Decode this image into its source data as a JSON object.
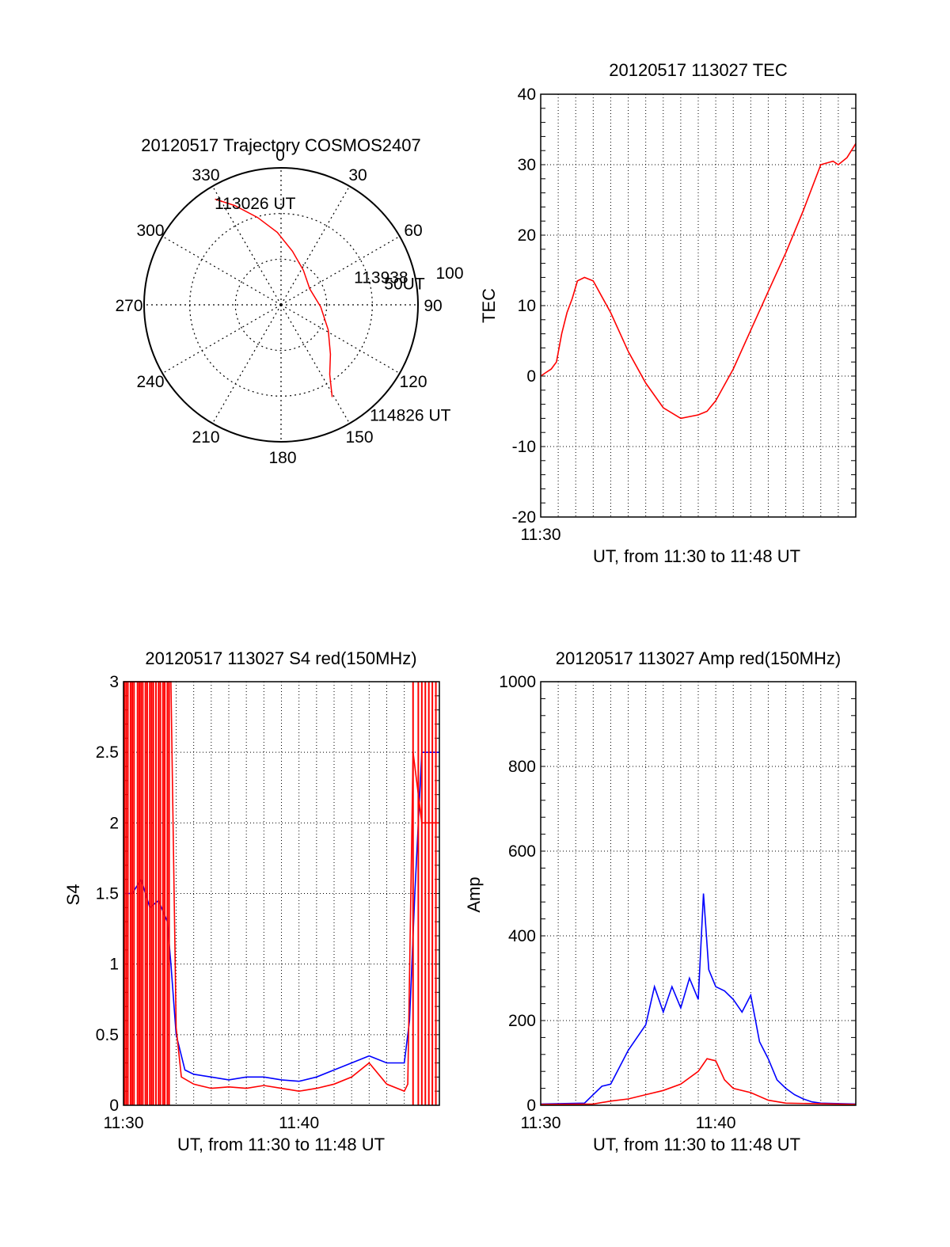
{
  "colors": {
    "red": "#ff0000",
    "blue": "#0000ff",
    "axis": "#000000",
    "grid": "#000000"
  },
  "chart_data": [
    {
      "type": "polar-trajectory",
      "title": "20120517 Trajectory COSMOS2407",
      "azimuth_labels": [
        "0",
        "30",
        "60",
        "90",
        "120",
        "150",
        "180",
        "210",
        "240",
        "270",
        "300",
        "330"
      ],
      "radius_label": "100",
      "rings": 3,
      "grid": true,
      "series": [
        {
          "color": "red",
          "points": [
            [
              328,
              91
            ],
            [
              335,
              80
            ],
            [
              345,
              66
            ],
            [
              357,
              53
            ],
            [
              12,
              40
            ],
            [
              33,
              30
            ],
            [
              61,
              24
            ],
            [
              93,
              29
            ],
            [
              118,
              39
            ],
            [
              135,
              51
            ],
            [
              145,
              62
            ],
            [
              151,
              77
            ]
          ]
        }
      ],
      "annotations": [
        {
          "text": "113026 UT",
          "az": 327,
          "r": 89
        },
        {
          "text": "113938",
          "az": 69,
          "r": 57
        },
        {
          "text": "50UT",
          "az": 78,
          "r": 77
        },
        {
          "text": "114826 UT",
          "az": 141,
          "r": 103
        }
      ]
    },
    {
      "type": "line",
      "title": "20120517 113027 TEC",
      "ylabel": "TEC",
      "xlabel": "UT, from 11:30 to 11:48 UT",
      "xlim": [
        0,
        18
      ],
      "ylim": [
        -20,
        40
      ],
      "yticks": [
        "-20",
        "-10",
        "0",
        "10",
        "20",
        "30",
        "40"
      ],
      "xtick_labels": [
        {
          "x": 0,
          "label": "11:30"
        }
      ],
      "grid": true,
      "series": [
        {
          "color": "red",
          "x": [
            0,
            0.3,
            0.6,
            0.9,
            1.2,
            1.5,
            1.8,
            2.1,
            2.5,
            3,
            4,
            5,
            6,
            7,
            8,
            9,
            9.5,
            10,
            11,
            12,
            13,
            14,
            15,
            16,
            16.7,
            17,
            17.5,
            18
          ],
          "y": [
            0,
            0.5,
            1,
            2,
            6,
            9,
            11,
            13.5,
            14,
            13.5,
            9,
            3.5,
            -1,
            -4.5,
            -6,
            -5.5,
            -5,
            -3.5,
            1,
            6.5,
            12,
            17.5,
            23.5,
            30,
            30.5,
            30,
            31,
            33
          ]
        }
      ]
    },
    {
      "type": "line",
      "title": "20120517 113027 S4 red(150MHz)",
      "ylabel": "S4",
      "xlabel": "UT, from 11:30 to 11:48 UT",
      "xlim": [
        0,
        18
      ],
      "ylim": [
        0,
        3
      ],
      "yticks": [
        "0",
        "0.5",
        "1",
        "1.5",
        "2",
        "2.5",
        "3"
      ],
      "xtick_labels": [
        {
          "x": 0,
          "label": "11:30"
        },
        {
          "x": 10,
          "label": "11:40"
        }
      ],
      "grid": true,
      "series": [
        {
          "color": "blue",
          "x": [
            0,
            0.5,
            1,
            1.5,
            2,
            2.5,
            2.7,
            3,
            3.5,
            4,
            5,
            6,
            7,
            8,
            9,
            10,
            11,
            12,
            13,
            14,
            15,
            16,
            16.3,
            16.6,
            17,
            17.5,
            18
          ],
          "y": [
            1.5,
            1.5,
            1.6,
            1.4,
            1.45,
            1.3,
            1.0,
            0.5,
            0.25,
            0.22,
            0.2,
            0.18,
            0.2,
            0.2,
            0.18,
            0.17,
            0.2,
            0.25,
            0.3,
            0.35,
            0.3,
            0.3,
            0.6,
            1.5,
            2.5,
            2.5,
            2.5
          ]
        },
        {
          "color": "red",
          "x": [
            0,
            2.7,
            3,
            3.3,
            4,
            5,
            6,
            7,
            8,
            9,
            10,
            11,
            12,
            13,
            14,
            15,
            16,
            16.2,
            16.5,
            17,
            17.5,
            18
          ],
          "y": [
            3,
            3,
            0.55,
            0.2,
            0.15,
            0.12,
            0.13,
            0.12,
            0.14,
            0.12,
            0.1,
            0.12,
            0.15,
            0.2,
            0.3,
            0.15,
            0.1,
            0.15,
            2.5,
            2.0,
            2.0,
            2.0
          ],
          "spikes_to_top_x": [
            0.05,
            0.15,
            0.25,
            0.4,
            0.5,
            0.6,
            0.8,
            0.9,
            1.0,
            1.1,
            1.25,
            1.35,
            1.5,
            1.6,
            1.7,
            1.85,
            2.0,
            2.1,
            2.25,
            2.35,
            2.5,
            2.6,
            16.5,
            16.8,
            17.0,
            17.2,
            17.4,
            17.6,
            17.8
          ]
        }
      ]
    },
    {
      "type": "line",
      "title": "20120517 113027 Amp red(150MHz)",
      "ylabel": "Amp",
      "xlabel": "UT, from 11:30 to 11:48 UT",
      "xlim": [
        0,
        18
      ],
      "ylim": [
        0,
        1000
      ],
      "yticks": [
        "0",
        "200",
        "400",
        "600",
        "800",
        "1000"
      ],
      "xtick_labels": [
        {
          "x": 0,
          "label": "11:30"
        },
        {
          "x": 10,
          "label": "11:40"
        }
      ],
      "grid": true,
      "series": [
        {
          "color": "blue",
          "x": [
            0,
            2.5,
            3,
            3.5,
            4,
            5,
            6,
            6.5,
            7,
            7.5,
            8,
            8.5,
            9,
            9.3,
            9.6,
            10,
            10.5,
            11,
            11.5,
            12,
            12.5,
            13,
            13.5,
            14,
            14.5,
            15,
            15.5,
            16,
            18
          ],
          "y": [
            3,
            5,
            25,
            45,
            50,
            130,
            190,
            280,
            220,
            280,
            230,
            300,
            250,
            500,
            320,
            280,
            270,
            250,
            220,
            260,
            150,
            110,
            60,
            40,
            25,
            15,
            8,
            5,
            3
          ]
        },
        {
          "color": "red",
          "x": [
            0,
            3,
            4,
            5,
            6,
            7,
            8,
            9,
            9.5,
            10,
            10.5,
            11,
            12,
            13,
            14,
            18
          ],
          "y": [
            2,
            3,
            10,
            15,
            25,
            35,
            50,
            80,
            110,
            105,
            60,
            40,
            30,
            12,
            5,
            2
          ]
        }
      ]
    }
  ]
}
